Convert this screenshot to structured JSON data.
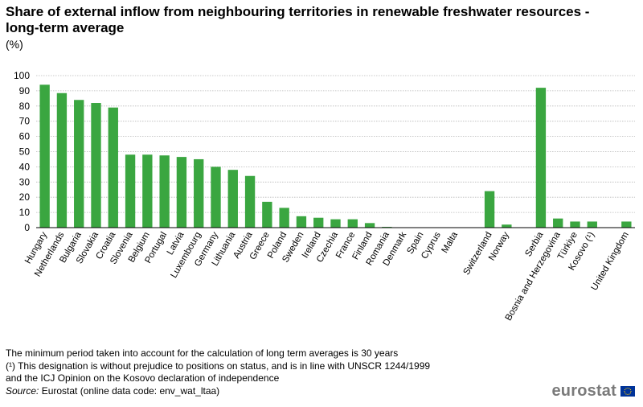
{
  "title": "Share of external inflow from neighbouring territories in renewable freshwater resources - long-term average",
  "unit": "(%)",
  "chart_data": {
    "type": "bar",
    "title": "Share of external inflow from neighbouring territories in renewable freshwater resources - long-term average",
    "ylabel": "(%)",
    "xlabel": "",
    "ylim": [
      0,
      100
    ],
    "yticks": [
      0,
      10,
      20,
      30,
      40,
      50,
      60,
      70,
      80,
      90,
      100
    ],
    "grid": true,
    "bar_color": "#3aa640",
    "categories": [
      "Hungary",
      "Netherlands",
      "Bulgaria",
      "Slovakia",
      "Croatia",
      "Slovenia",
      "Belgium",
      "Portugal",
      "Latvia",
      "Luxembourg",
      "Germany",
      "Lithuania",
      "Austria",
      "Greece",
      "Poland",
      "Sweden",
      "Ireland",
      "Czechia",
      "France",
      "Finland",
      "Romania",
      "Denmark",
      "Spain",
      "Cyprus",
      "Malta",
      "",
      "Switzerland",
      "Norway",
      "",
      "Serbia",
      "Bosnia and Herzegovina",
      "Türkiye",
      "Kosovo (¹)",
      "",
      "United Kingdom"
    ],
    "values": [
      94,
      88.5,
      84,
      82,
      79,
      48,
      48,
      47.5,
      46.5,
      45,
      40,
      38,
      34,
      17,
      13,
      7.5,
      6.5,
      5.5,
      5.5,
      3,
      0.5,
      0,
      0,
      0,
      0,
      null,
      24,
      2,
      null,
      92,
      6,
      4,
      4,
      null,
      4
    ]
  },
  "footnotes": [
    "The minimum period taken into account for the calculation of long term averages is 30 years",
    "(¹) This designation is without prejudice to positions on status, and is in line with UNSCR 1244/1999 and the ICJ Opinion on the Kosovo declaration of independence"
  ],
  "source": {
    "label": "Source:",
    "text": " Eurostat (online data code: env_wat_ltaa)"
  },
  "logo": {
    "text": "eurostat",
    "flag_color": "#003399",
    "star_color": "#ffcc00"
  }
}
